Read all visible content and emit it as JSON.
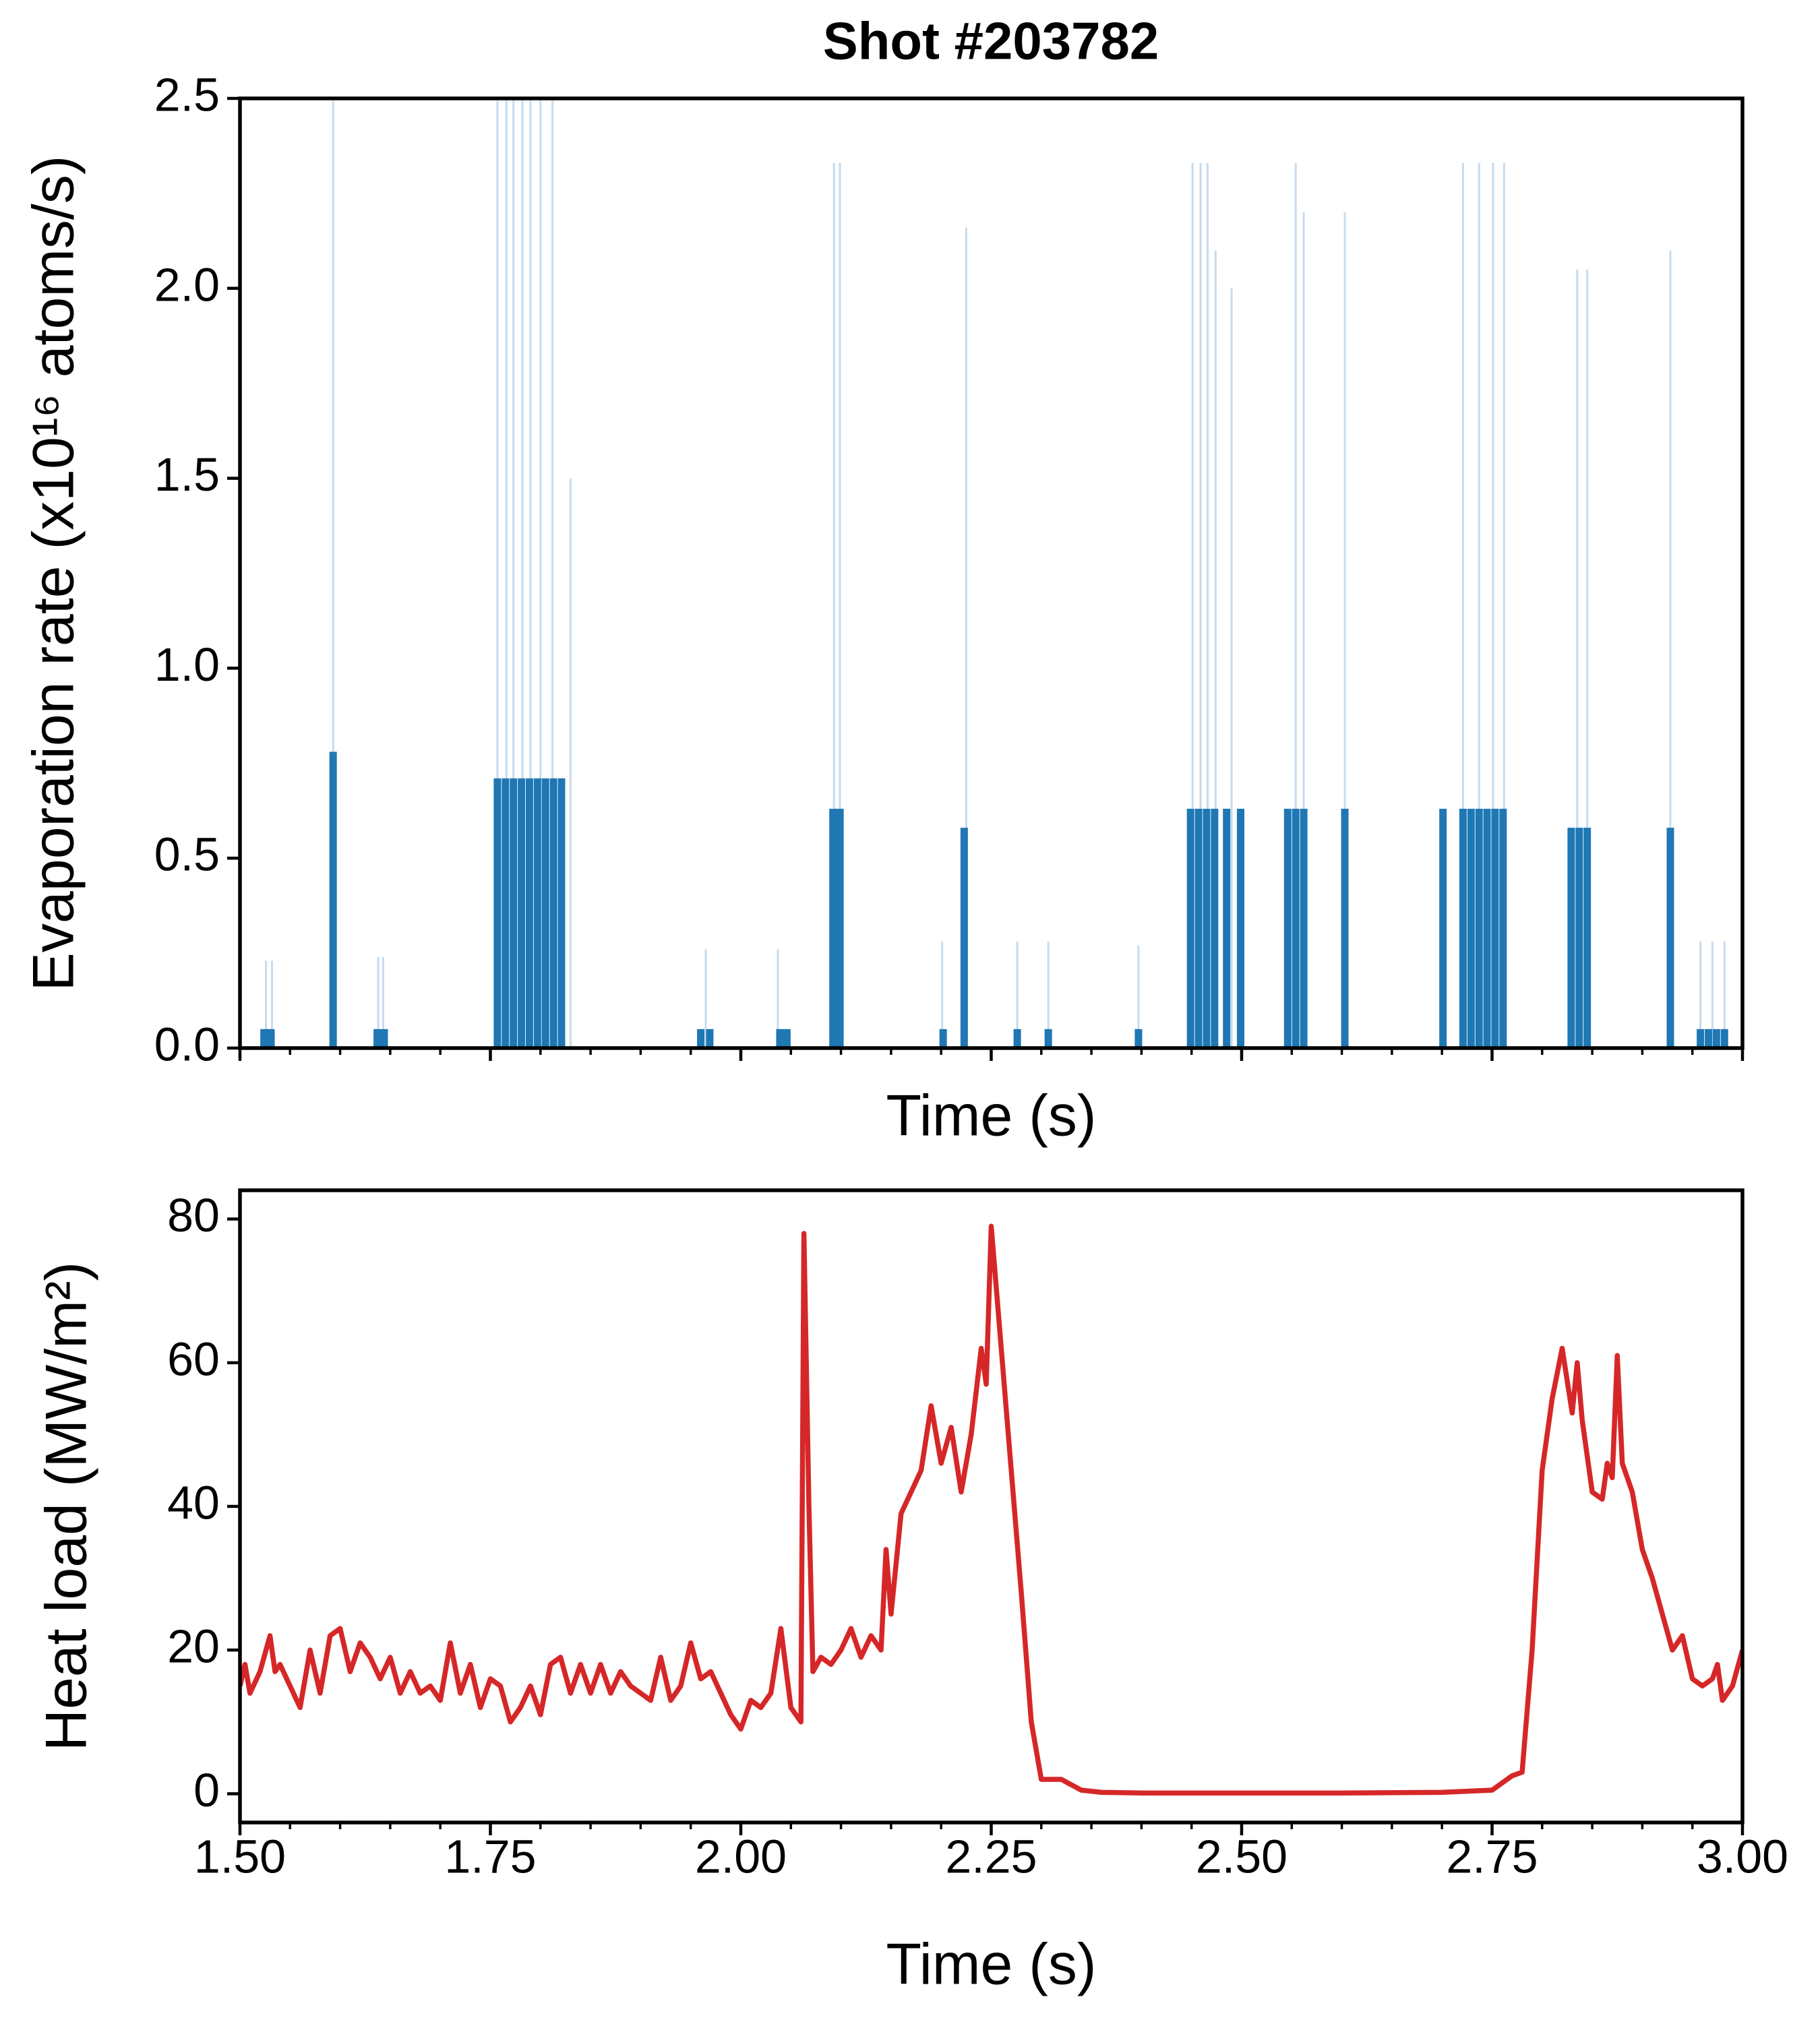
{
  "chart_data": [
    {
      "type": "bar",
      "title": "Shot #203782",
      "xlabel": "Time (s)",
      "ylabel": "Evaporation rate (x10¹⁶ atoms/s)",
      "xlim": [
        1.5,
        3.0
      ],
      "ylim": [
        0,
        2.5
      ],
      "xticks": [
        1.5,
        1.75,
        2.0,
        2.25,
        2.5,
        2.75,
        3.0
      ],
      "xminorticks": [
        1.55,
        1.6,
        1.65,
        1.7,
        1.8,
        1.85,
        1.9,
        1.95,
        2.05,
        2.1,
        2.15,
        2.2,
        2.3,
        2.35,
        2.4,
        2.45,
        2.55,
        2.6,
        2.65,
        2.7,
        2.8,
        2.85,
        2.9,
        2.95
      ],
      "show_xticklabels": false,
      "yticks": [
        {
          "value": 0,
          "label": "0.0"
        },
        0.5,
        {
          "value": 1,
          "label": "1.0"
        },
        1.5,
        {
          "value": 2,
          "label": "2.0"
        },
        2.5
      ],
      "series": [
        {
          "color": "#1f77b4",
          "x": [
            1.524,
            1.531,
            1.593,
            1.637,
            1.644,
            1.757,
            1.765,
            1.773,
            1.781,
            1.789,
            1.797,
            1.805,
            1.813,
            1.821,
            1.96,
            1.969,
            2.039,
            2.046,
            2.092,
            2.099,
            2.202,
            2.223,
            2.276,
            2.307,
            2.397,
            2.449,
            2.457,
            2.465,
            2.473,
            2.485,
            2.499,
            2.546,
            2.554,
            2.562,
            2.603,
            2.701,
            2.721,
            2.729,
            2.737,
            2.745,
            2.753,
            2.761,
            2.829,
            2.837,
            2.845,
            2.928,
            2.958,
            2.966,
            2.974,
            2.982
          ],
          "values": [
            0.05,
            0.05,
            0.78,
            0.05,
            0.05,
            0.71,
            0.71,
            0.71,
            0.71,
            0.71,
            0.71,
            0.71,
            0.71,
            0.71,
            0.05,
            0.05,
            0.05,
            0.05,
            0.63,
            0.63,
            0.05,
            0.58,
            0.05,
            0.05,
            0.05,
            0.63,
            0.63,
            0.63,
            0.63,
            0.63,
            0.63,
            0.63,
            0.63,
            0.63,
            0.63,
            0.63,
            0.63,
            0.63,
            0.63,
            0.63,
            0.63,
            0.63,
            0.58,
            0.58,
            0.58,
            0.58,
            0.05,
            0.05,
            0.05,
            0.05
          ]
        },
        {
          "color": "#c6dbef",
          "x": [
            1.526,
            1.532,
            1.593,
            1.638,
            1.643,
            1.757,
            1.766,
            1.773,
            1.782,
            1.79,
            1.8,
            1.812,
            1.83,
            1.965,
            2.037,
            2.093,
            2.099,
            2.201,
            2.225,
            2.276,
            2.307,
            2.397,
            2.451,
            2.459,
            2.466,
            2.474,
            2.49,
            2.554,
            2.562,
            2.603,
            2.721,
            2.737,
            2.751,
            2.762,
            2.835,
            2.845,
            2.928,
            2.958,
            2.97,
            2.982
          ],
          "values": [
            0.23,
            0.23,
            2.5,
            0.24,
            0.24,
            2.5,
            2.5,
            2.5,
            2.5,
            2.5,
            2.5,
            2.5,
            1.5,
            0.26,
            0.26,
            2.33,
            2.33,
            0.28,
            2.16,
            0.28,
            0.28,
            0.27,
            2.33,
            2.33,
            2.33,
            2.1,
            2.0,
            2.33,
            2.2,
            2.2,
            2.33,
            2.33,
            2.33,
            2.33,
            2.05,
            2.05,
            2.1,
            0.28,
            0.28,
            0.28
          ]
        }
      ]
    },
    {
      "type": "line",
      "xlabel": "Time (s)",
      "ylabel": "Heat load (MW/m²)",
      "xlim": [
        1.5,
        3.0
      ],
      "ylim": [
        -4,
        84
      ],
      "xticks": [
        {
          "value": 1.5,
          "label": "1.50"
        },
        {
          "value": 1.75,
          "label": "1.75"
        },
        {
          "value": 2.0,
          "label": "2.00"
        },
        {
          "value": 2.25,
          "label": "2.25"
        },
        {
          "value": 2.5,
          "label": "2.50"
        },
        {
          "value": 2.75,
          "label": "2.75"
        },
        {
          "value": 3.0,
          "label": "3.00"
        }
      ],
      "xminorticks": [
        1.55,
        1.6,
        1.65,
        1.7,
        1.8,
        1.85,
        1.9,
        1.95,
        2.05,
        2.1,
        2.15,
        2.2,
        2.3,
        2.35,
        2.4,
        2.45,
        2.55,
        2.6,
        2.65,
        2.7,
        2.8,
        2.85,
        2.9,
        2.95
      ],
      "show_xticklabels": true,
      "yticks": [
        0,
        20,
        40,
        60,
        80
      ],
      "color": "#d62728",
      "x": [
        1.5,
        1.505,
        1.51,
        1.52,
        1.53,
        1.535,
        1.54,
        1.55,
        1.56,
        1.57,
        1.58,
        1.59,
        1.6,
        1.61,
        1.62,
        1.63,
        1.64,
        1.65,
        1.66,
        1.67,
        1.68,
        1.69,
        1.7,
        1.71,
        1.72,
        1.73,
        1.74,
        1.75,
        1.76,
        1.77,
        1.78,
        1.79,
        1.8,
        1.81,
        1.82,
        1.83,
        1.84,
        1.85,
        1.86,
        1.87,
        1.88,
        1.89,
        1.9,
        1.91,
        1.92,
        1.93,
        1.94,
        1.95,
        1.96,
        1.97,
        1.98,
        1.99,
        2.0,
        2.01,
        2.02,
        2.03,
        2.04,
        2.05,
        2.06,
        2.063,
        2.068,
        2.072,
        2.08,
        2.09,
        2.1,
        2.11,
        2.12,
        2.13,
        2.14,
        2.145,
        2.15,
        2.16,
        2.17,
        2.18,
        2.19,
        2.2,
        2.21,
        2.22,
        2.23,
        2.24,
        2.245,
        2.25,
        2.26,
        2.27,
        2.28,
        2.29,
        2.3,
        2.32,
        2.34,
        2.36,
        2.4,
        2.5,
        2.6,
        2.7,
        2.75,
        2.76,
        2.77,
        2.78,
        2.79,
        2.8,
        2.81,
        2.82,
        2.83,
        2.835,
        2.84,
        2.85,
        2.86,
        2.865,
        2.87,
        2.875,
        2.88,
        2.89,
        2.9,
        2.91,
        2.92,
        2.93,
        2.94,
        2.95,
        2.96,
        2.97,
        2.975,
        2.98,
        2.99,
        3.0
      ],
      "values": [
        15,
        18,
        14,
        17,
        22,
        17,
        18,
        15,
        12,
        20,
        14,
        22,
        23,
        17,
        21,
        19,
        16,
        19,
        14,
        17,
        14,
        15,
        13,
        21,
        14,
        18,
        12,
        16,
        15,
        10,
        12,
        15,
        11,
        18,
        19,
        14,
        18,
        14,
        18,
        14,
        17,
        15,
        14,
        13,
        19,
        13,
        15,
        21,
        16,
        17,
        14,
        11,
        9,
        13,
        12,
        14,
        23,
        12,
        10,
        78,
        40,
        17,
        19,
        18,
        20,
        23,
        19,
        22,
        20,
        34,
        25,
        39,
        42,
        45,
        54,
        46,
        51,
        42,
        50,
        62,
        57,
        79,
        62,
        45,
        28,
        10,
        2,
        2,
        0.5,
        0.2,
        0.1,
        0.1,
        0.1,
        0.2,
        0.5,
        1.5,
        2.5,
        3,
        20,
        45,
        55,
        62,
        53,
        60,
        52,
        42,
        41,
        46,
        44,
        61,
        46,
        42,
        34,
        30,
        25,
        20,
        22,
        16,
        15,
        16,
        18,
        13,
        15,
        20
      ]
    }
  ]
}
